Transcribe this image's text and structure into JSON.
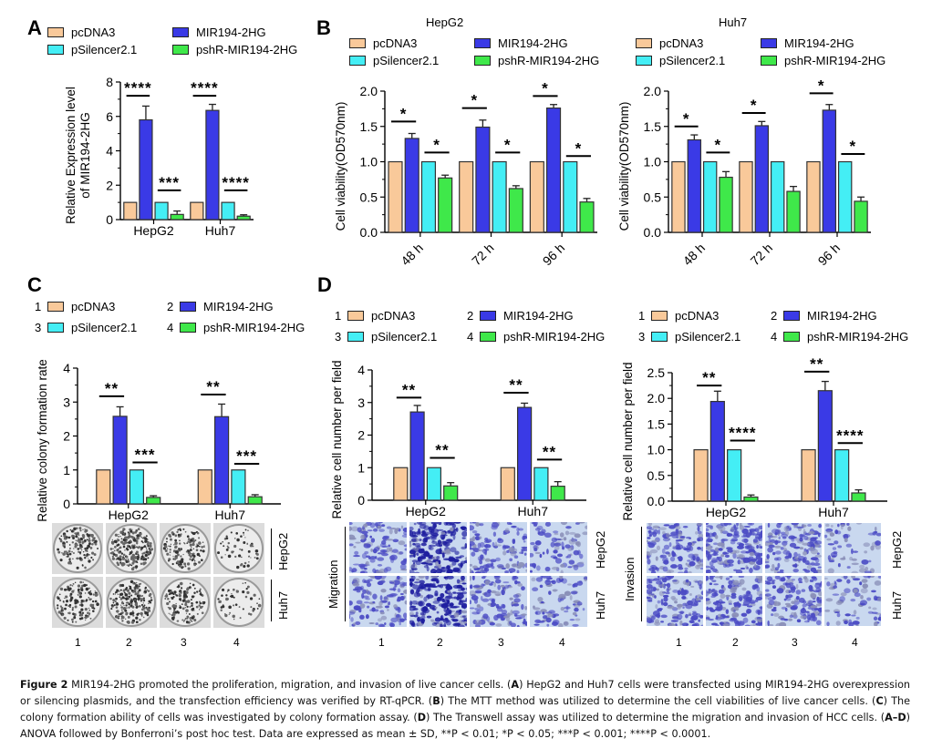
{
  "colors": {
    "pcDNA3": "#f9c99a",
    "MIR194-2HG": "#3a3ae6",
    "pSilencer2.1": "#44eef5",
    "pshR-MIR194-2HG": "#3fe84a"
  },
  "legend_labels": [
    "pcDNA3",
    "MIR194-2HG",
    "pSilencer2.1",
    "pshR-MIR194-2HG"
  ],
  "legend_numbers": [
    "1",
    "2",
    "3",
    "4"
  ],
  "panels": {
    "A": {
      "letter": "A"
    },
    "B": {
      "letter": "B",
      "subtitle_left": "HepG2",
      "subtitle_right": "Huh7"
    },
    "C": {
      "letter": "C",
      "row_labels": [
        "HepG2",
        "Huh7"
      ],
      "col_numbers": [
        "1",
        "2",
        "3",
        "4"
      ]
    },
    "D": {
      "letter": "D",
      "migration_label": "Migration",
      "invasion_label": "Invasion",
      "row_labels": [
        "HepG2",
        "Huh7"
      ],
      "col_numbers": [
        "1",
        "2",
        "3",
        "4"
      ]
    }
  },
  "chart_data": [
    {
      "id": "A",
      "type": "bar",
      "title": "",
      "ylabel": "Relative Expression level of MIR194-2HG",
      "ylabel_lines": [
        "Relative Expression level",
        "of MIR194-2HG"
      ],
      "xlabel": "",
      "categories": [
        "HepG2",
        "Huh7"
      ],
      "ylim": [
        0,
        8
      ],
      "yticks": [
        0,
        2,
        4,
        6,
        8
      ],
      "ytick_labels": [
        "0",
        "2",
        "4",
        "6",
        "8"
      ],
      "series": [
        {
          "name": "pcDNA3",
          "values": [
            1.0,
            1.0
          ],
          "errors": [
            0,
            0
          ]
        },
        {
          "name": "MIR194-2HG",
          "values": [
            5.8,
            6.35
          ],
          "errors": [
            0.8,
            0.35
          ]
        },
        {
          "name": "pSilencer2.1",
          "values": [
            1.0,
            1.0
          ],
          "errors": [
            0,
            0
          ]
        },
        {
          "name": "pshR-MIR194-2HG",
          "values": [
            0.3,
            0.2
          ],
          "errors": [
            0.2,
            0.08
          ]
        }
      ],
      "significance": [
        {
          "category": "HepG2",
          "pair": [
            0,
            1
          ],
          "label": "****",
          "y": 7.2
        },
        {
          "category": "HepG2",
          "pair": [
            2,
            3
          ],
          "label": "***",
          "y": 1.7
        },
        {
          "category": "Huh7",
          "pair": [
            0,
            1
          ],
          "label": "****",
          "y": 7.2
        },
        {
          "category": "Huh7",
          "pair": [
            2,
            3
          ],
          "label": "****",
          "y": 1.7
        }
      ]
    },
    {
      "id": "B-HepG2",
      "type": "bar",
      "title": "HepG2",
      "ylabel": "Cell viability(OD570nm)",
      "xlabel": "",
      "categories": [
        "48 h",
        "72 h",
        "96 h"
      ],
      "ylim": [
        0,
        2.0
      ],
      "yticks": [
        0,
        0.5,
        1.0,
        1.5,
        2.0
      ],
      "ytick_labels": [
        "0.0",
        "0.5",
        "1.0",
        "1.5",
        "2.0"
      ],
      "series": [
        {
          "name": "pcDNA3",
          "values": [
            1.0,
            1.0,
            1.0
          ],
          "errors": [
            0,
            0,
            0
          ]
        },
        {
          "name": "MIR194-2HG",
          "values": [
            1.33,
            1.49,
            1.76
          ],
          "errors": [
            0.07,
            0.1,
            0.05
          ]
        },
        {
          "name": "pSilencer2.1",
          "values": [
            1.0,
            1.0,
            1.0
          ],
          "errors": [
            0,
            0,
            0
          ]
        },
        {
          "name": "pshR-MIR194-2HG",
          "values": [
            0.77,
            0.62,
            0.43
          ],
          "errors": [
            0.04,
            0.04,
            0.05
          ]
        }
      ],
      "significance": [
        {
          "category": "48 h",
          "pair": [
            0,
            1
          ],
          "label": "*",
          "y": 1.57
        },
        {
          "category": "48 h",
          "pair": [
            2,
            3
          ],
          "label": "*",
          "y": 1.13
        },
        {
          "category": "72 h",
          "pair": [
            0,
            1
          ],
          "label": "*",
          "y": 1.76
        },
        {
          "category": "72 h",
          "pair": [
            2,
            3
          ],
          "label": "*",
          "y": 1.13
        },
        {
          "category": "96 h",
          "pair": [
            0,
            1
          ],
          "label": "*",
          "y": 1.93
        },
        {
          "category": "96 h",
          "pair": [
            2,
            3
          ],
          "label": "*",
          "y": 1.08
        }
      ]
    },
    {
      "id": "B-Huh7",
      "type": "bar",
      "title": "Huh7",
      "ylabel": "Cell viability(OD570nm)",
      "xlabel": "",
      "categories": [
        "48 h",
        "72 h",
        "96 h"
      ],
      "ylim": [
        0,
        2.0
      ],
      "yticks": [
        0,
        0.5,
        1.0,
        1.5,
        2.0
      ],
      "ytick_labels": [
        "0.0",
        "0.5",
        "1.0",
        "1.5",
        "2.0"
      ],
      "series": [
        {
          "name": "pcDNA3",
          "values": [
            1.0,
            1.0,
            1.0
          ],
          "errors": [
            0,
            0,
            0
          ]
        },
        {
          "name": "MIR194-2HG",
          "values": [
            1.31,
            1.51,
            1.73
          ],
          "errors": [
            0.07,
            0.06,
            0.08
          ]
        },
        {
          "name": "pSilencer2.1",
          "values": [
            1.0,
            1.0,
            1.0
          ],
          "errors": [
            0,
            0,
            0
          ]
        },
        {
          "name": "pshR-MIR194-2HG",
          "values": [
            0.78,
            0.58,
            0.44
          ],
          "errors": [
            0.08,
            0.07,
            0.06
          ]
        }
      ],
      "significance": [
        {
          "category": "48 h",
          "pair": [
            0,
            1
          ],
          "label": "*",
          "y": 1.5
        },
        {
          "category": "48 h",
          "pair": [
            2,
            3
          ],
          "label": "*",
          "y": 1.13
        },
        {
          "category": "72 h",
          "pair": [
            0,
            1
          ],
          "label": "*",
          "y": 1.69
        },
        {
          "category": "96 h",
          "pair": [
            0,
            1
          ],
          "label": "*",
          "y": 1.97
        },
        {
          "category": "96 h",
          "pair": [
            2,
            3
          ],
          "label": "*",
          "y": 1.11
        }
      ]
    },
    {
      "id": "C",
      "type": "bar",
      "title": "",
      "ylabel": "Relative colony formation rate",
      "xlabel": "",
      "categories": [
        "HepG2",
        "Huh7"
      ],
      "ylim": [
        0,
        4
      ],
      "yticks": [
        0,
        1,
        2,
        3,
        4
      ],
      "ytick_labels": [
        "0",
        "1",
        "2",
        "3",
        "4"
      ],
      "series": [
        {
          "name": "pcDNA3",
          "values": [
            1.0,
            1.0
          ],
          "errors": [
            0,
            0
          ]
        },
        {
          "name": "MIR194-2HG",
          "values": [
            2.58,
            2.57
          ],
          "errors": [
            0.28,
            0.37
          ]
        },
        {
          "name": "pSilencer2.1",
          "values": [
            1.0,
            1.0
          ],
          "errors": [
            0,
            0
          ]
        },
        {
          "name": "pshR-MIR194-2HG",
          "values": [
            0.19,
            0.21
          ],
          "errors": [
            0.05,
            0.06
          ]
        }
      ],
      "significance": [
        {
          "category": "HepG2",
          "pair": [
            0,
            1
          ],
          "label": "**",
          "y": 3.17
        },
        {
          "category": "HepG2",
          "pair": [
            2,
            3
          ],
          "label": "***",
          "y": 1.22
        },
        {
          "category": "Huh7",
          "pair": [
            0,
            1
          ],
          "label": "**",
          "y": 3.22
        },
        {
          "category": "Huh7",
          "pair": [
            2,
            3
          ],
          "label": "***",
          "y": 1.18
        }
      ]
    },
    {
      "id": "D-Migration",
      "type": "bar",
      "title": "",
      "ylabel": "Relative cell number per field",
      "xlabel": "",
      "categories": [
        "HepG2",
        "Huh7"
      ],
      "ylim": [
        0,
        4
      ],
      "yticks": [
        0,
        1,
        2,
        3,
        4
      ],
      "ytick_labels": [
        "0",
        "1",
        "2",
        "3",
        "4"
      ],
      "series": [
        {
          "name": "pcDNA3",
          "values": [
            1.0,
            1.0
          ],
          "errors": [
            0,
            0
          ]
        },
        {
          "name": "MIR194-2HG",
          "values": [
            2.71,
            2.85
          ],
          "errors": [
            0.2,
            0.13
          ]
        },
        {
          "name": "pSilencer2.1",
          "values": [
            1.0,
            1.0
          ],
          "errors": [
            0,
            0
          ]
        },
        {
          "name": "pshR-MIR194-2HG",
          "values": [
            0.44,
            0.43
          ],
          "errors": [
            0.1,
            0.14
          ]
        }
      ],
      "significance": [
        {
          "category": "HepG2",
          "pair": [
            0,
            1
          ],
          "label": "**",
          "y": 3.15
        },
        {
          "category": "HepG2",
          "pair": [
            2,
            3
          ],
          "label": "**",
          "y": 1.3
        },
        {
          "category": "Huh7",
          "pair": [
            0,
            1
          ],
          "label": "**",
          "y": 3.3
        },
        {
          "category": "Huh7",
          "pair": [
            2,
            3
          ],
          "label": "**",
          "y": 1.25
        }
      ]
    },
    {
      "id": "D-Invasion",
      "type": "bar",
      "title": "",
      "ylabel": "Relative cell number per field",
      "xlabel": "",
      "categories": [
        "HepG2",
        "Huh7"
      ],
      "ylim": [
        0,
        2.5
      ],
      "yticks": [
        0,
        0.5,
        1.0,
        1.5,
        2.0,
        2.5
      ],
      "ytick_labels": [
        "0.0",
        "0.5",
        "1.0",
        "1.5",
        "2.0",
        "2.5"
      ],
      "series": [
        {
          "name": "pcDNA3",
          "values": [
            1.0,
            1.0
          ],
          "errors": [
            0,
            0
          ]
        },
        {
          "name": "MIR194-2HG",
          "values": [
            1.94,
            2.15
          ],
          "errors": [
            0.2,
            0.18
          ]
        },
        {
          "name": "pSilencer2.1",
          "values": [
            1.0,
            1.0
          ],
          "errors": [
            0,
            0
          ]
        },
        {
          "name": "pshR-MIR194-2HG",
          "values": [
            0.08,
            0.16
          ],
          "errors": [
            0.04,
            0.06
          ]
        }
      ],
      "significance": [
        {
          "category": "HepG2",
          "pair": [
            0,
            1
          ],
          "label": "**",
          "y": 2.25
        },
        {
          "category": "HepG2",
          "pair": [
            2,
            3
          ],
          "label": "****",
          "y": 1.18
        },
        {
          "category": "Huh7",
          "pair": [
            0,
            1
          ],
          "label": "**",
          "y": 2.52
        },
        {
          "category": "Huh7",
          "pair": [
            2,
            3
          ],
          "label": "****",
          "y": 1.13
        }
      ]
    }
  ],
  "caption": {
    "figure_label": "Figure 2",
    "parts": [
      {
        "t": " MIR194-2HG promoted the proliferation, migration, and invasion of live cancer cells. (",
        "b": false
      },
      {
        "t": "A",
        "b": true
      },
      {
        "t": ") HepG2 and Huh7 cells were transfected using MIR194-2HG overexpression or silencing plasmids, and the transfection efficiency was verified by RT-qPCR. (",
        "b": false
      },
      {
        "t": "B",
        "b": true
      },
      {
        "t": ") The MTT method was utilized to determine the cell viabilities of live cancer cells. (",
        "b": false
      },
      {
        "t": "C",
        "b": true
      },
      {
        "t": ") The colony formation ability of cells was investigated by colony formation assay. (",
        "b": false
      },
      {
        "t": "D",
        "b": true
      },
      {
        "t": ") The Transwell assay was utilized to determine the migration and invasion of HCC cells. (",
        "b": false
      },
      {
        "t": "A–D",
        "b": true
      },
      {
        "t": ") ANOVA followed by Bonferroni’s post hoc test. Data are expressed as mean ± SD, **P < 0.01; *P < 0.05; ***P < 0.001; ****P < 0.0001.",
        "b": false
      }
    ]
  }
}
